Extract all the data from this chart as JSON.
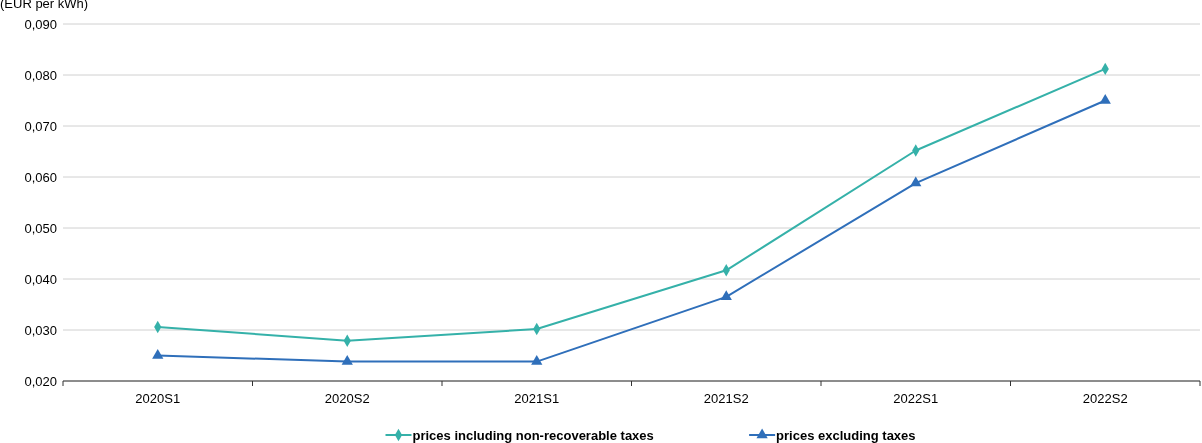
{
  "chart_data": {
    "type": "line",
    "ylabel": "(EUR per kWh)",
    "categories": [
      "2020S1",
      "2020S2",
      "2021S1",
      "2021S2",
      "2022S1",
      "2022S2"
    ],
    "series": [
      {
        "name": "prices including non-recoverable taxes",
        "color": "#35b1a9",
        "marker": "diamond",
        "values": [
          0.0306,
          0.0279,
          0.0302,
          0.0417,
          0.0652,
          0.0812
        ]
      },
      {
        "name": "prices excluding taxes",
        "color": "#2f6fba",
        "marker": "triangle",
        "values": [
          0.025,
          0.0238,
          0.0238,
          0.0365,
          0.0588,
          0.075
        ]
      }
    ],
    "ylim": [
      0.02,
      0.09
    ],
    "yticks": [
      {
        "value": 0.02,
        "label": "0,020"
      },
      {
        "value": 0.03,
        "label": "0,030"
      },
      {
        "value": 0.04,
        "label": "0,040"
      },
      {
        "value": 0.05,
        "label": "0,050"
      },
      {
        "value": 0.06,
        "label": "0,060"
      },
      {
        "value": 0.07,
        "label": "0,070"
      },
      {
        "value": 0.08,
        "label": "0,080"
      },
      {
        "value": 0.09,
        "label": "0,090"
      }
    ],
    "grid": "y",
    "legend": "bottom",
    "line_style": "solid"
  }
}
